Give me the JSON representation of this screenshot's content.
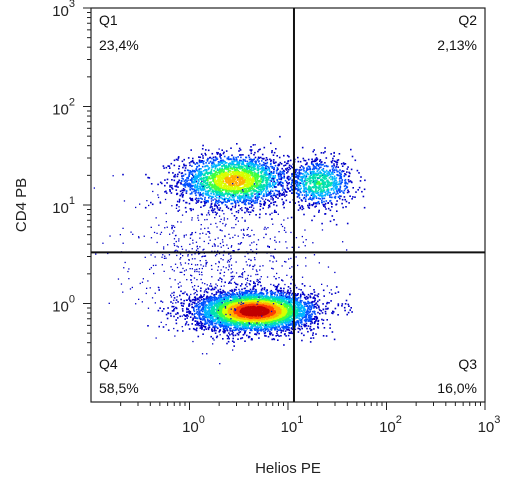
{
  "chart_data": {
    "type": "scatter",
    "subtype": "flow-cytometry-density-dot-plot",
    "xlabel": "Helios PE",
    "ylabel": "CD4 PB",
    "x_scale": "log",
    "y_scale": "log",
    "xlim": [
      0.1,
      1000
    ],
    "ylim": [
      0.1,
      1000
    ],
    "x_ticks": [
      {
        "base": "10",
        "exp": "0",
        "value": 1
      },
      {
        "base": "10",
        "exp": "1",
        "value": 10
      },
      {
        "base": "10",
        "exp": "2",
        "value": 100
      },
      {
        "base": "10",
        "exp": "3",
        "value": 1000
      }
    ],
    "y_ticks": [
      {
        "base": "10",
        "exp": "0",
        "value": 1
      },
      {
        "base": "10",
        "exp": "1",
        "value": 10
      },
      {
        "base": "10",
        "exp": "2",
        "value": 100
      },
      {
        "base": "10",
        "exp": "3",
        "value": 1000
      }
    ],
    "gates": {
      "x": 11.5,
      "y": 3.3
    },
    "quadrants": [
      {
        "name": "Q1",
        "percent": "23,4%",
        "position": "top-left"
      },
      {
        "name": "Q2",
        "percent": "2,13%",
        "position": "top-right"
      },
      {
        "name": "Q3",
        "percent": "16,0%",
        "position": "bottom-right"
      },
      {
        "name": "Q4",
        "percent": "58,5%",
        "position": "bottom-left"
      }
    ],
    "populations": [
      {
        "center": [
          2.8,
          18
        ],
        "spread_log": [
          0.28,
          0.13
        ],
        "density": "medium"
      },
      {
        "center": [
          20,
          17
        ],
        "spread_log": [
          0.18,
          0.12
        ],
        "density": "low"
      },
      {
        "center": [
          4.5,
          0.85
        ],
        "spread_log": [
          0.3,
          0.1
        ],
        "density": "high"
      }
    ],
    "colormap": [
      "#0000c8",
      "#0050ff",
      "#00b4ff",
      "#00e0b0",
      "#40ff40",
      "#d8ff00",
      "#ffb000",
      "#ff4000",
      "#c00000"
    ],
    "grid": false,
    "legend": "none"
  }
}
